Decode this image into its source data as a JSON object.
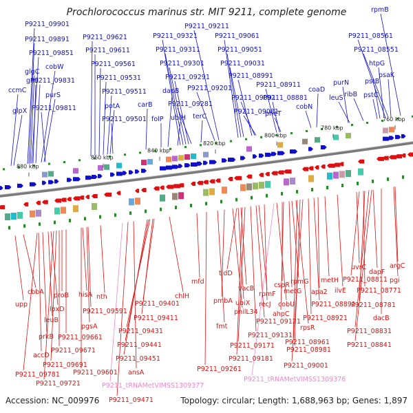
{
  "title": "Prochlorococcus marinus str. MIT 9211, complete genome",
  "footer": {
    "accession": "Accession: NC_009976",
    "topology": "Topology: circular; Length: 1,688,963 bp; Genes: 1,897"
  },
  "colors": {
    "forward": "#1010cc",
    "reverse": "#dd1111",
    "rna": "#ee88cc",
    "backbone": "#888888",
    "marker": "#2a8a2a"
  },
  "ticks": [
    {
      "label": "880 kbp"
    },
    {
      "label": "860 kbp"
    },
    {
      "label": "840 kbp"
    },
    {
      "label": "820 kbp"
    },
    {
      "label": "800 kbp"
    },
    {
      "label": "780 kbp"
    },
    {
      "label": "760 kbp"
    }
  ],
  "top_labels": [
    "P9211_09901",
    "P9211_09891",
    "P9211_09851",
    "glgC",
    "cobW",
    "gnd",
    "P9211_09831",
    "ccmC",
    "purS",
    "glpX",
    "P9211_09811",
    "P9211_09621",
    "P9211_09611",
    "P9211_09561",
    "P9211_09531",
    "P9211_09511",
    "potA",
    "P9211_09501",
    "P9211_09321",
    "P9211_09311",
    "P9211_09301",
    "dapB",
    "P9211_09291",
    "P9211_09281",
    "ubiH",
    "carB",
    "folP",
    "terC",
    "P9211_09211",
    "P9211_09061",
    "P9211_09051",
    "P9211_09031",
    "P9211_09201",
    "P9211_08991",
    "P9211_09091",
    "P9211_09081",
    "P9211_08911",
    "P9211_08881",
    "pheT",
    "coaD",
    "cobN",
    "rpmB",
    "P9211_08561",
    "P9211_08551",
    "htpG",
    "purN",
    "psaK",
    "leuS",
    "ribB",
    "pstC",
    "pstB"
  ],
  "bottom_labels": [
    "upp",
    "cbbA",
    "proB",
    "lpxD",
    "leuB",
    "prkB",
    "accD",
    "P9211_09781",
    "P9211_09721",
    "P9211_09691",
    "P9211_09671",
    "P9211_09661",
    "hisA",
    "nth",
    "P9211_09591",
    "pgsA",
    "P9211_09601",
    "P9211_tRNAMetVIMSS1309377",
    "ansA",
    "P9211_09471",
    "P9211_09401",
    "P9211_09411",
    "P9211_09431",
    "P9211_09441",
    "P9211_09451",
    "chlH",
    "mfd",
    "tldD",
    "pmbA",
    "pnilL34",
    "fmt",
    "P9211_09261",
    "vacB",
    "ubiX",
    "recJ",
    "rpmF",
    "P9211_09121",
    "P9211_09131",
    "P9211_09171",
    "P9211_09181",
    "cspR",
    "rpmG",
    "metH",
    "apa2",
    "ilvE",
    "ahpC",
    "cobU",
    "metG",
    "P9211_08921",
    "P9211_08891",
    "rpsR",
    "P9211_08961",
    "P9211_08981",
    "P9211_09001",
    "P9211_tRNAMetVIMSS1309376",
    "uvrC",
    "dapF",
    "argC",
    "P9211_08811",
    "pgi",
    "P9211_08771",
    "P9211_08781",
    "dacB",
    "P9211_08831",
    "P9211_08841"
  ]
}
